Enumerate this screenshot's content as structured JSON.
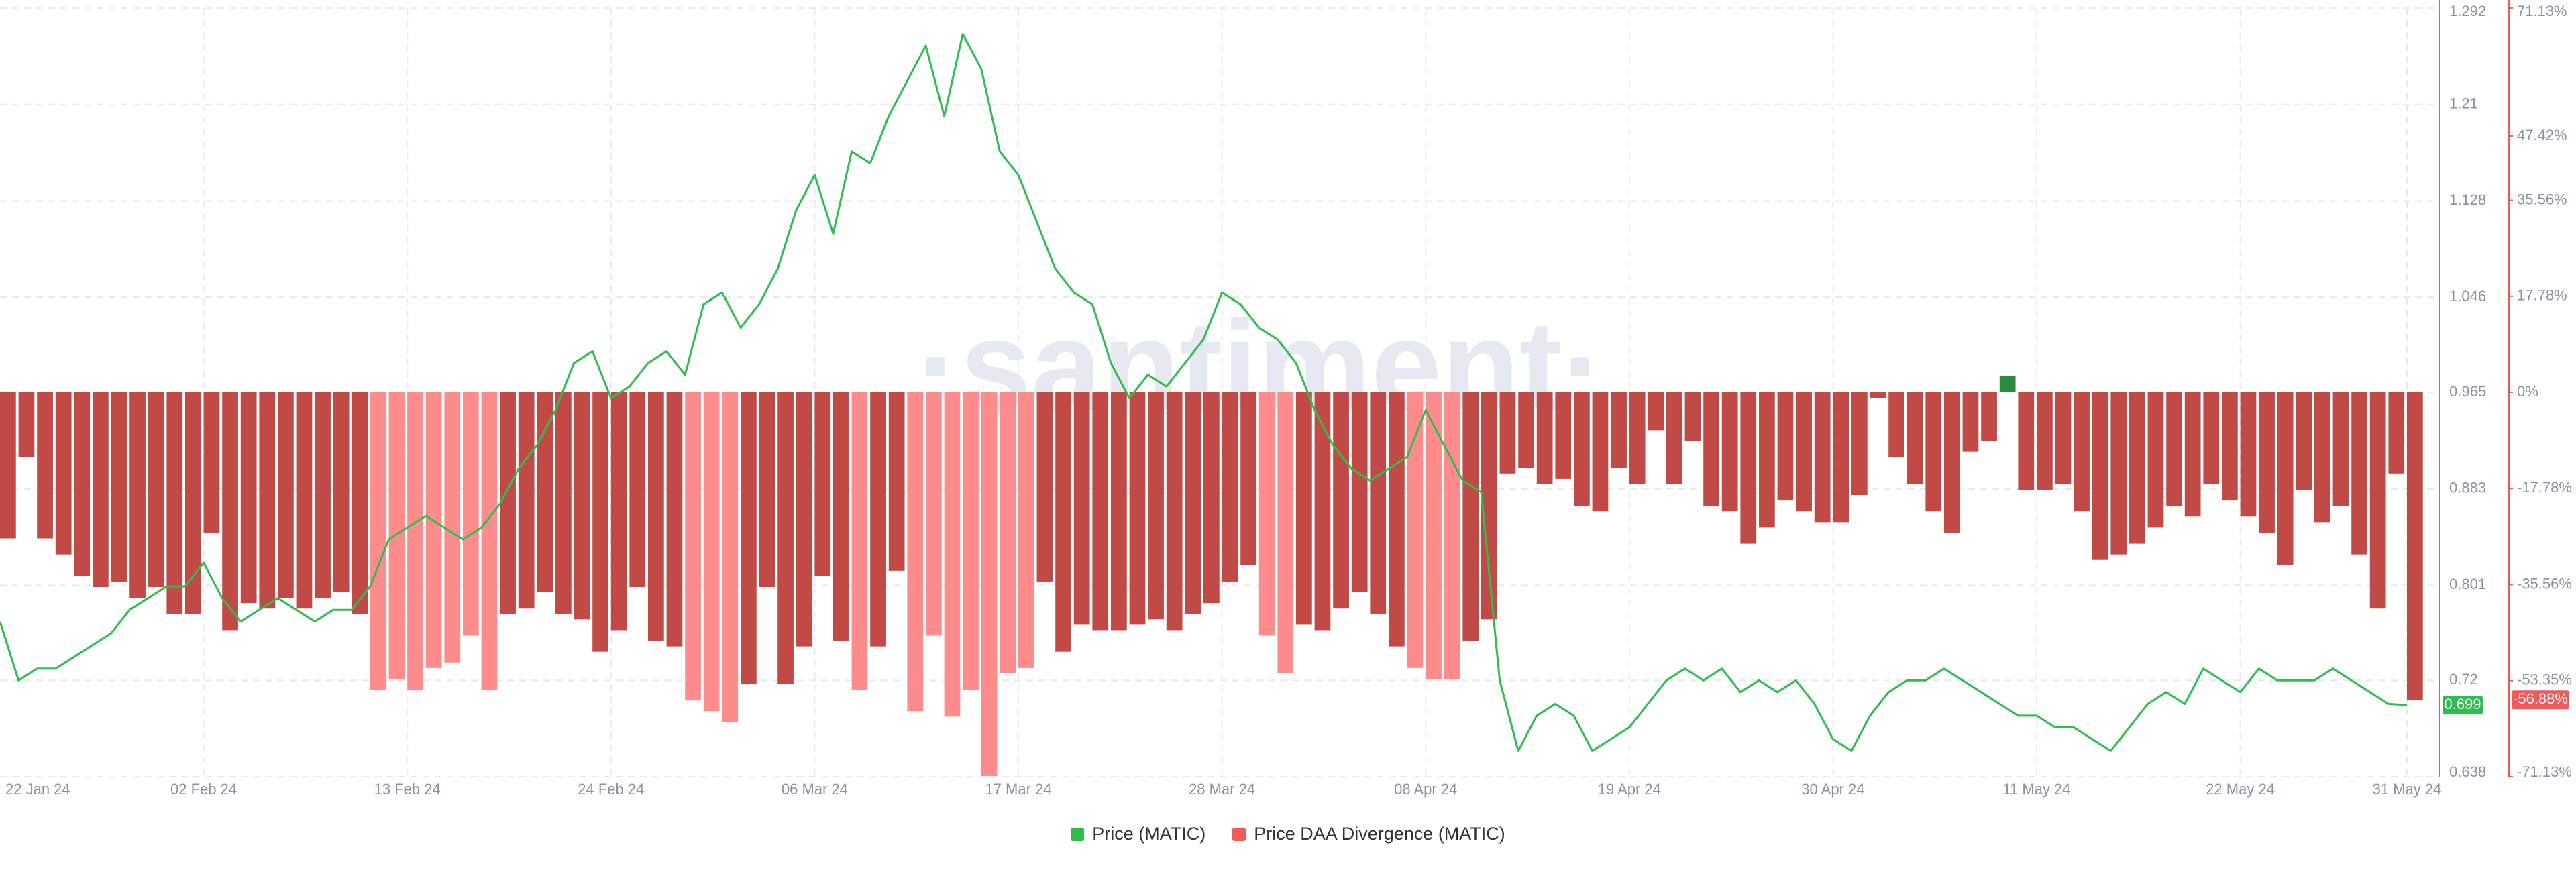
{
  "chart_data": {
    "type": "bar-line",
    "watermark": "·santiment·",
    "categories": [
      "22 Jan 24",
      null,
      null,
      null,
      null,
      null,
      null,
      null,
      null,
      null,
      null,
      "02 Feb 24",
      null,
      null,
      null,
      null,
      null,
      null,
      null,
      null,
      null,
      null,
      "13 Feb 24",
      null,
      null,
      null,
      null,
      null,
      null,
      null,
      null,
      null,
      null,
      "24 Feb 24",
      null,
      null,
      null,
      null,
      null,
      null,
      null,
      null,
      null,
      null,
      "06 Mar 24",
      null,
      null,
      null,
      null,
      null,
      null,
      null,
      null,
      null,
      null,
      "17 Mar 24",
      null,
      null,
      null,
      null,
      null,
      null,
      null,
      null,
      null,
      null,
      "28 Mar 24",
      null,
      null,
      null,
      null,
      null,
      null,
      null,
      null,
      null,
      null,
      "08 Apr 24",
      null,
      null,
      null,
      null,
      null,
      null,
      null,
      null,
      null,
      null,
      "19 Apr 24",
      null,
      null,
      null,
      null,
      null,
      null,
      null,
      null,
      null,
      null,
      "30 Apr 24",
      null,
      null,
      null,
      null,
      null,
      null,
      null,
      null,
      null,
      null,
      "11 May 24",
      null,
      null,
      null,
      null,
      null,
      null,
      null,
      null,
      null,
      null,
      "22 May 24",
      null,
      null,
      null,
      null,
      null,
      null,
      null,
      null,
      "31 May 24"
    ],
    "series": [
      {
        "name": "Price (MATIC)",
        "kind": "line",
        "color": "#2ebd4e",
        "axis": "y",
        "values": [
          0.77,
          0.72,
          0.73,
          0.73,
          0.74,
          0.75,
          0.76,
          0.78,
          0.79,
          0.8,
          0.8,
          0.82,
          0.79,
          0.77,
          0.78,
          0.79,
          0.78,
          0.77,
          0.78,
          0.78,
          0.8,
          0.84,
          0.85,
          0.86,
          0.85,
          0.84,
          0.85,
          0.87,
          0.9,
          0.92,
          0.95,
          0.99,
          1.0,
          0.96,
          0.97,
          0.99,
          1.0,
          0.98,
          1.04,
          1.05,
          1.02,
          1.04,
          1.07,
          1.12,
          1.15,
          1.1,
          1.17,
          1.16,
          1.2,
          1.23,
          1.26,
          1.2,
          1.27,
          1.24,
          1.17,
          1.15,
          1.11,
          1.07,
          1.05,
          1.04,
          0.99,
          0.96,
          0.98,
          0.97,
          0.99,
          1.01,
          1.05,
          1.04,
          1.02,
          1.01,
          0.99,
          0.95,
          0.92,
          0.9,
          0.89,
          0.9,
          0.91,
          0.95,
          0.92,
          0.89,
          0.88,
          0.72,
          0.66,
          0.69,
          0.7,
          0.69,
          0.66,
          0.67,
          0.68,
          0.7,
          0.72,
          0.73,
          0.72,
          0.73,
          0.71,
          0.72,
          0.71,
          0.72,
          0.7,
          0.67,
          0.66,
          0.69,
          0.71,
          0.72,
          0.72,
          0.73,
          0.72,
          0.71,
          0.7,
          0.69,
          0.69,
          0.68,
          0.68,
          0.67,
          0.66,
          0.68,
          0.7,
          0.71,
          0.7,
          0.73,
          0.72,
          0.71,
          0.73,
          0.72,
          0.72,
          0.72,
          0.73,
          0.72,
          0.71,
          0.7,
          0.699
        ]
      },
      {
        "name": "Price DAA Divergence (MATIC)",
        "kind": "bar",
        "color": "#f05a5a",
        "axis": "y2",
        "last_label": "-56.88%",
        "values": [
          -27,
          -12,
          -27,
          -30,
          -34,
          -36,
          -35,
          -38,
          -36,
          -41,
          -41,
          -26,
          -44,
          -39,
          -40,
          -38,
          -40,
          -38,
          -37,
          -41,
          -55,
          -53,
          -55,
          -51,
          -50,
          -45,
          -55,
          -41,
          -40,
          -37,
          -41,
          -42,
          -48,
          -44,
          -36,
          -46,
          -47,
          -57,
          -59,
          -61,
          -54,
          -36,
          -54,
          -47,
          -34,
          -46,
          -55,
          -47,
          -33,
          -59,
          -45,
          -60,
          -55,
          -71,
          -52,
          -51,
          -35,
          -48,
          -43,
          -44,
          -44,
          -43,
          -42,
          -44,
          -41,
          -39,
          -35,
          -32,
          -45,
          -52,
          -43,
          -44,
          -40,
          -37,
          -41,
          -47,
          -51,
          -53,
          -53,
          -46,
          -42,
          -15,
          -14,
          -17,
          -16,
          -21,
          -22,
          -14,
          -17,
          -7,
          -17,
          -9,
          -21,
          -22,
          -28,
          -25,
          -20,
          -22,
          -24,
          -24,
          -19,
          -1,
          -12,
          -17,
          -22,
          -26,
          -11,
          -9,
          3,
          -18,
          -18,
          -17,
          -22,
          -31,
          -30,
          -28,
          -25,
          -21,
          -23,
          -17,
          -20,
          -23,
          -26,
          -32,
          -18,
          -24,
          -21,
          -30,
          -40,
          -15,
          -56.88
        ],
        "colors": [
          "#c24a46",
          "#c24a46",
          "#c24a46",
          "#c24a46",
          "#c24a46",
          "#c24a46",
          "#c24a46",
          "#c24a46",
          "#c24a46",
          "#c24a46",
          "#c24a46",
          "#c24a46",
          "#c24a46",
          "#c24a46",
          "#c24a46",
          "#c24a46",
          "#c24a46",
          "#c24a46",
          "#c24a46",
          "#c24a46",
          "#ff8c8c",
          "#ff8c8c",
          "#ff8c8c",
          "#ff8c8c",
          "#ff8c8c",
          "#ff8c8c",
          "#ff8c8c",
          "#c24a46",
          "#c24a46",
          "#c24a46",
          "#c24a46",
          "#c24a46",
          "#c24a46",
          "#c24a46",
          "#c24a46",
          "#c24a46",
          "#c24a46",
          "#ff8c8c",
          "#ff8c8c",
          "#ff8c8c",
          "#c24a46",
          "#c24a46",
          "#c24a46",
          "#c24a46",
          "#c24a46",
          "#c24a46",
          "#ff8c8c",
          "#c24a46",
          "#c24a46",
          "#ff8c8c",
          "#ff8c8c",
          "#ff8c8c",
          "#ff8c8c",
          "#ff8c8c",
          "#ff8c8c",
          "#ff8c8c",
          "#c24a46",
          "#c24a46",
          "#c24a46",
          "#c24a46",
          "#c24a46",
          "#c24a46",
          "#c24a46",
          "#c24a46",
          "#c24a46",
          "#c24a46",
          "#c24a46",
          "#c24a46",
          "#ff8c8c",
          "#ff8c8c",
          "#c24a46",
          "#c24a46",
          "#c24a46",
          "#c24a46",
          "#c24a46",
          "#c24a46",
          "#ff8c8c",
          "#ff8c8c",
          "#ff8c8c",
          "#c24a46",
          "#c24a46",
          "#c24a46",
          "#c24a46",
          "#c24a46",
          "#c24a46",
          "#c24a46",
          "#c24a46",
          "#c24a46",
          "#c24a46",
          "#c24a46",
          "#c24a46",
          "#c24a46",
          "#c24a46",
          "#c24a46",
          "#c24a46",
          "#c24a46",
          "#c24a46",
          "#c24a46",
          "#c24a46",
          "#c24a46",
          "#c24a46",
          "#c24a46",
          "#c24a46",
          "#c24a46",
          "#c24a46",
          "#c24a46",
          "#c24a46",
          "#c24a46",
          "#2e8b3e",
          "#c24a46",
          "#c24a46",
          "#c24a46",
          "#c24a46",
          "#c24a46",
          "#c24a46",
          "#c24a46",
          "#c24a46",
          "#c24a46",
          "#c24a46",
          "#c24a46",
          "#c24a46",
          "#c24a46",
          "#c24a46",
          "#c24a46",
          "#c24a46",
          "#c24a46",
          "#c24a46",
          "#c24a46",
          "#c24a46",
          "#c24a46",
          "#c24a46"
        ]
      }
    ],
    "ylim": [
      0.638,
      1.292
    ],
    "yticks": [
      0.638,
      0.72,
      0.801,
      0.883,
      0.965,
      1.046,
      1.128,
      1.21,
      1.292
    ],
    "y2lim": [
      -71.13,
      71.13
    ],
    "y2ticks": [
      {
        "value": -71.13,
        "label": "-71.13%"
      },
      {
        "value": -53.35,
        "label": "-53.35%"
      },
      {
        "value": -35.56,
        "label": "-35.56%"
      },
      {
        "value": -17.78,
        "label": "-17.78%"
      },
      {
        "value": 0,
        "label": "0%"
      },
      {
        "value": 17.78,
        "label": "17.78%"
      },
      {
        "value": 35.56,
        "label": "35.56%"
      },
      {
        "value": 47.42,
        "label": "47.42%"
      },
      {
        "value": 71.13,
        "label": "71.13%"
      }
    ],
    "grid": true
  }
}
